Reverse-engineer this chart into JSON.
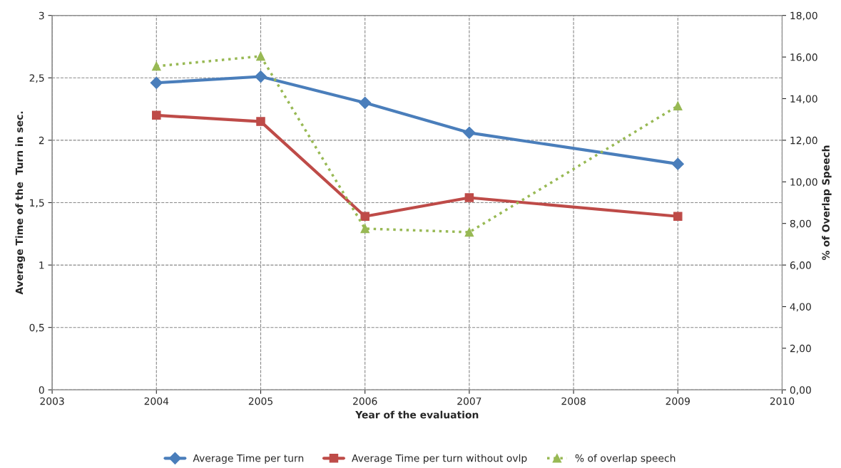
{
  "chart_data": {
    "type": "line",
    "xlabel": "Year of the evaluation",
    "ylabel": "Average Time of the  Turn in sec.",
    "y2label": "% of Overlap Speech",
    "x": [
      2004,
      2005,
      2006,
      2007,
      2009
    ],
    "series": [
      {
        "name": "Average Time per turn",
        "color": "#4a7ebb",
        "values": [
          2.46,
          2.51,
          2.3,
          2.06,
          1.81
        ],
        "marker": "diamond",
        "line_style": "solid"
      },
      {
        "name": "Average Time per turn without ovlp",
        "color": "#be4b48",
        "values": [
          2.2,
          2.15,
          1.39,
          1.54,
          1.39
        ],
        "marker": "square",
        "line_style": "solid"
      },
      {
        "name": "% of overlap speech",
        "color": "#98b954",
        "values": [
          15.56,
          16.04,
          7.75,
          7.58,
          13.65
        ],
        "marker": "triangle",
        "line_style": "dotted",
        "axis": "y2"
      }
    ],
    "xlim": [
      2003,
      2010
    ],
    "xticks": [
      2003,
      2004,
      2005,
      2006,
      2007,
      2008,
      2009,
      2010
    ],
    "ylim": [
      0,
      3
    ],
    "yticks": [
      0,
      {
        "value": 0.5,
        "label": "0,5"
      },
      1,
      {
        "value": 1.5,
        "label": "1,5"
      },
      2,
      {
        "value": 2.5,
        "label": "2,5"
      },
      3
    ],
    "y2lim": [
      0,
      18
    ],
    "y2ticks": [
      {
        "value": 0,
        "label": "0,00"
      },
      {
        "value": 2,
        "label": "2,00"
      },
      {
        "value": 4,
        "label": "4,00"
      },
      {
        "value": 6,
        "label": "6,00"
      },
      {
        "value": 8,
        "label": "8,00"
      },
      {
        "value": 10,
        "label": "10,00"
      },
      {
        "value": 12,
        "label": "12,00"
      },
      {
        "value": 14,
        "label": "14,00"
      },
      {
        "value": 16,
        "label": "16,00"
      },
      {
        "value": 18,
        "label": "18,00"
      }
    ],
    "grid": true,
    "legend": "bottom"
  }
}
